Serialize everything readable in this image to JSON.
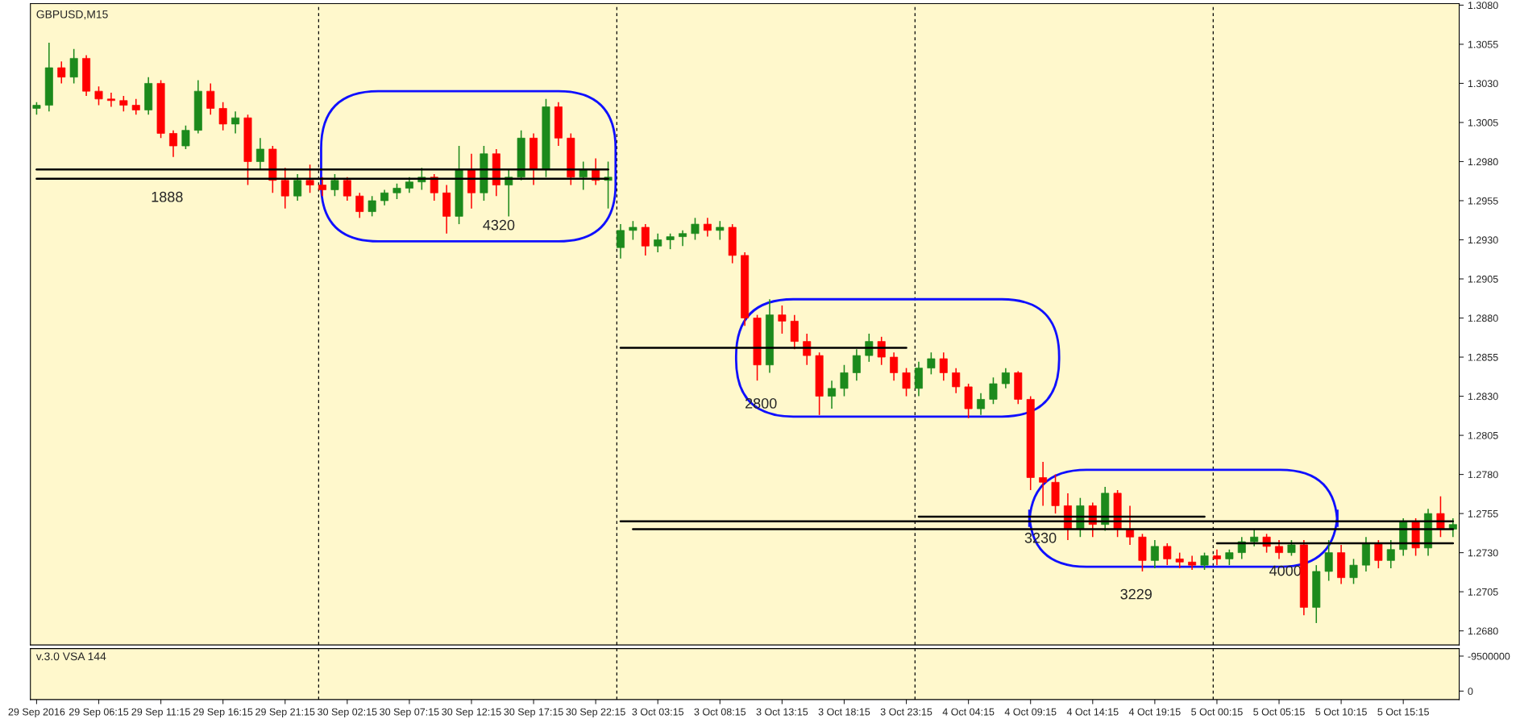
{
  "chart_data": [
    {
      "type": "candlestick",
      "title": "GBPUSD,M15",
      "categories": [
        null,
        null,
        null,
        null,
        null,
        null,
        null,
        null,
        null,
        null,
        null,
        null,
        null,
        null,
        null,
        null,
        null,
        null,
        null,
        null,
        null,
        null,
        null,
        null,
        null,
        null,
        null,
        null,
        null,
        null,
        null,
        null,
        null,
        null,
        null,
        null,
        null,
        null,
        null,
        null,
        null,
        null,
        null,
        null,
        null,
        null,
        null,
        null,
        null,
        null,
        null,
        null,
        null,
        null,
        null,
        null,
        null,
        null,
        null,
        null,
        null,
        null,
        null,
        null,
        null,
        null,
        null,
        null,
        null,
        null,
        null,
        null,
        null,
        null,
        null,
        null,
        null,
        null,
        null,
        null,
        null,
        null,
        null,
        null,
        null,
        null,
        null,
        null,
        null,
        null,
        null,
        null,
        null,
        null,
        null,
        null,
        null,
        null,
        null,
        null,
        null,
        null,
        null,
        null,
        null,
        null,
        null,
        null,
        null,
        null,
        null,
        null,
        null,
        null,
        null
      ],
      "ohlc": [
        [
          1.3014,
          1.3018,
          1.301,
          1.3016
        ],
        [
          1.3016,
          1.3056,
          1.3012,
          1.304
        ],
        [
          1.304,
          1.3044,
          1.303,
          1.3034
        ],
        [
          1.3034,
          1.3052,
          1.303,
          1.3046
        ],
        [
          1.3046,
          1.3048,
          1.3022,
          1.3025
        ],
        [
          1.3025,
          1.3028,
          1.3016,
          1.302
        ],
        [
          1.302,
          1.3024,
          1.3015,
          1.3019
        ],
        [
          1.3019,
          1.3022,
          1.3012,
          1.3016
        ],
        [
          1.3016,
          1.302,
          1.301,
          1.3013
        ],
        [
          1.3013,
          1.3034,
          1.301,
          1.303
        ],
        [
          1.303,
          1.3032,
          1.2995,
          1.2998
        ],
        [
          1.2998,
          1.3,
          1.2983,
          1.299
        ],
        [
          1.299,
          1.3003,
          1.2988,
          1.3
        ],
        [
          1.3,
          1.3032,
          1.2998,
          1.3025
        ],
        [
          1.3025,
          1.303,
          1.301,
          1.3014
        ],
        [
          1.3014,
          1.3018,
          1.3,
          1.3004
        ],
        [
          1.3004,
          1.3012,
          1.2998,
          1.3008
        ],
        [
          1.3008,
          1.301,
          1.2965,
          1.298
        ],
        [
          1.298,
          1.2995,
          1.2975,
          1.2988
        ],
        [
          1.2988,
          1.299,
          1.296,
          1.2968
        ],
        [
          1.2968,
          1.2976,
          1.295,
          1.2958
        ],
        [
          1.2958,
          1.2972,
          1.2955,
          1.2968
        ],
        [
          1.2968,
          1.2978,
          1.296,
          1.2965
        ],
        [
          1.2965,
          1.297,
          1.2958,
          1.2962
        ],
        [
          1.2962,
          1.2972,
          1.2958,
          1.2968
        ],
        [
          1.2968,
          1.297,
          1.2955,
          1.2958
        ],
        [
          1.2958,
          1.296,
          1.2944,
          1.2948
        ],
        [
          1.2948,
          1.2958,
          1.2945,
          1.2955
        ],
        [
          1.2955,
          1.2962,
          1.2952,
          1.296
        ],
        [
          1.296,
          1.2966,
          1.2956,
          1.2963
        ],
        [
          1.2963,
          1.297,
          1.296,
          1.2967
        ],
        [
          1.2967,
          1.2976,
          1.2962,
          1.297
        ],
        [
          1.297,
          1.2972,
          1.2955,
          1.296
        ],
        [
          1.296,
          1.2965,
          1.2934,
          1.2945
        ],
        [
          1.2945,
          1.299,
          1.294,
          1.2975
        ],
        [
          1.2975,
          1.2985,
          1.295,
          1.296
        ],
        [
          1.296,
          1.299,
          1.2955,
          1.2985
        ],
        [
          1.2985,
          1.2988,
          1.2958,
          1.2965
        ],
        [
          1.2965,
          1.2975,
          1.2945,
          1.297
        ],
        [
          1.297,
          1.3,
          1.2968,
          1.2995
        ],
        [
          1.2995,
          1.2998,
          1.2965,
          1.2975
        ],
        [
          1.2975,
          1.302,
          1.297,
          1.3015
        ],
        [
          1.3015,
          1.3018,
          1.299,
          1.2995
        ],
        [
          1.2995,
          1.2998,
          1.2965,
          1.297
        ],
        [
          1.297,
          1.298,
          1.2962,
          1.2975
        ],
        [
          1.2975,
          1.2982,
          1.2965,
          1.2968
        ],
        [
          1.2968,
          1.298,
          1.295,
          1.297
        ],
        [
          1.2925,
          1.294,
          1.2918,
          1.2936
        ],
        [
          1.2936,
          1.2942,
          1.293,
          1.2938
        ],
        [
          1.2938,
          1.294,
          1.292,
          1.2926
        ],
        [
          1.2926,
          1.2934,
          1.2922,
          1.293
        ],
        [
          1.293,
          1.2934,
          1.2924,
          1.2932
        ],
        [
          1.2932,
          1.2936,
          1.2926,
          1.2934
        ],
        [
          1.2934,
          1.2944,
          1.293,
          1.294
        ],
        [
          1.294,
          1.2944,
          1.2932,
          1.2936
        ],
        [
          1.2936,
          1.2942,
          1.293,
          1.2938
        ],
        [
          1.2938,
          1.294,
          1.2915,
          1.292
        ],
        [
          1.292,
          1.2922,
          1.2875,
          1.288
        ],
        [
          1.288,
          1.2882,
          1.284,
          1.285
        ],
        [
          1.285,
          1.2892,
          1.2845,
          1.2882
        ],
        [
          1.2882,
          1.2888,
          1.287,
          1.2878
        ],
        [
          1.2878,
          1.2882,
          1.286,
          1.2865
        ],
        [
          1.2865,
          1.287,
          1.285,
          1.2856
        ],
        [
          1.2856,
          1.2858,
          1.2818,
          1.283
        ],
        [
          1.283,
          1.284,
          1.2822,
          1.2835
        ],
        [
          1.2835,
          1.285,
          1.283,
          1.2845
        ],
        [
          1.2845,
          1.286,
          1.284,
          1.2856
        ],
        [
          1.2856,
          1.287,
          1.2852,
          1.2865
        ],
        [
          1.2865,
          1.2868,
          1.285,
          1.2855
        ],
        [
          1.2855,
          1.2858,
          1.284,
          1.2845
        ],
        [
          1.2845,
          1.2848,
          1.283,
          1.2835
        ],
        [
          1.2835,
          1.2852,
          1.283,
          1.2848
        ],
        [
          1.2848,
          1.2858,
          1.2844,
          1.2854
        ],
        [
          1.2854,
          1.2858,
          1.284,
          1.2845
        ],
        [
          1.2845,
          1.2848,
          1.2832,
          1.2836
        ],
        [
          1.2836,
          1.2838,
          1.2816,
          1.2822
        ],
        [
          1.2822,
          1.2832,
          1.2818,
          1.2828
        ],
        [
          1.2828,
          1.2842,
          1.2825,
          1.2838
        ],
        [
          1.2838,
          1.2848,
          1.2835,
          1.2845
        ],
        [
          1.2845,
          1.2846,
          1.2825,
          1.2828
        ],
        [
          1.2828,
          1.283,
          1.277,
          1.2778
        ],
        [
          1.2778,
          1.2788,
          1.276,
          1.2775
        ],
        [
          1.2775,
          1.278,
          1.2755,
          1.276
        ],
        [
          1.276,
          1.2768,
          1.2738,
          1.2745
        ],
        [
          1.2745,
          1.2765,
          1.274,
          1.276
        ],
        [
          1.276,
          1.2762,
          1.274,
          1.2748
        ],
        [
          1.2748,
          1.2772,
          1.2744,
          1.2768
        ],
        [
          1.2768,
          1.277,
          1.274,
          1.2745
        ],
        [
          1.2745,
          1.276,
          1.2735,
          1.274
        ],
        [
          1.274,
          1.2742,
          1.2718,
          1.2725
        ],
        [
          1.2725,
          1.2738,
          1.272,
          1.2734
        ],
        [
          1.2734,
          1.2736,
          1.2722,
          1.2726
        ],
        [
          1.2726,
          1.273,
          1.272,
          1.2724
        ],
        [
          1.2724,
          1.2728,
          1.2719,
          1.2722
        ],
        [
          1.2722,
          1.273,
          1.2719,
          1.2728
        ],
        [
          1.2728,
          1.2732,
          1.2722,
          1.2726
        ],
        [
          1.2726,
          1.2732,
          1.2722,
          1.273
        ],
        [
          1.273,
          1.274,
          1.2726,
          1.2737
        ],
        [
          1.2737,
          1.2745,
          1.2734,
          1.274
        ],
        [
          1.274,
          1.2742,
          1.273,
          1.2734
        ],
        [
          1.2734,
          1.2738,
          1.2726,
          1.273
        ],
        [
          1.273,
          1.2738,
          1.2728,
          1.2735
        ],
        [
          1.2735,
          1.2738,
          1.269,
          1.2695
        ],
        [
          1.2695,
          1.2722,
          1.2685,
          1.2718
        ],
        [
          1.2718,
          1.2738,
          1.2712,
          1.273
        ],
        [
          1.273,
          1.2735,
          1.271,
          1.2714
        ],
        [
          1.2714,
          1.2726,
          1.271,
          1.2722
        ],
        [
          1.2722,
          1.274,
          1.2718,
          1.2736
        ],
        [
          1.2736,
          1.2738,
          1.272,
          1.2725
        ],
        [
          1.2725,
          1.2738,
          1.272,
          1.2732
        ],
        [
          1.2732,
          1.2752,
          1.2728,
          1.275
        ],
        [
          1.275,
          1.2752,
          1.2728,
          1.2733
        ],
        [
          1.2733,
          1.2758,
          1.2728,
          1.2755
        ],
        [
          1.2755,
          1.2766,
          1.274,
          1.2745
        ],
        [
          1.2745,
          1.2752,
          1.274,
          1.2748
        ]
      ],
      "series": [
        {
          "type": "line",
          "color": "#000000",
          "values": [
            1.2975,
            1.2975,
            1.2975,
            1.2975,
            1.2975,
            1.2975,
            1.2975,
            1.2975,
            1.2975,
            1.2975,
            1.2975,
            1.2975,
            1.2975,
            1.2975,
            1.2975,
            1.2975,
            1.2975,
            1.2975,
            1.2975,
            1.2975,
            1.2975,
            1.2975,
            1.2975,
            1.2975,
            1.2975,
            1.2975,
            1.2975,
            1.2975,
            1.2975,
            1.2975,
            1.2975,
            1.2975,
            1.2975,
            1.2975,
            1.2975,
            1.2975,
            1.2975,
            1.2975,
            1.2975,
            1.2975,
            1.2975,
            1.2975,
            1.2975,
            1.2975,
            1.2975,
            1.2975,
            1.2975,
            null,
            null,
            null,
            null,
            null,
            null,
            null,
            null,
            null,
            null,
            null,
            null,
            null,
            null,
            null,
            null,
            null,
            null,
            null,
            null,
            null,
            null,
            null,
            null,
            null,
            null,
            null,
            null,
            null,
            null,
            null,
            null,
            null,
            null,
            null,
            null,
            null,
            null,
            null,
            null,
            null,
            null,
            null,
            null,
            null,
            null,
            null,
            null,
            null,
            null,
            null,
            null,
            null,
            null,
            null,
            null,
            null,
            null,
            null,
            null,
            null,
            null,
            null,
            null,
            null,
            null,
            null,
            null
          ]
        },
        {
          "type": "line",
          "color": "#000000",
          "values": [
            1.2969,
            1.2969,
            1.2969,
            1.2969,
            1.2969,
            1.2969,
            1.2969,
            1.2969,
            1.2969,
            1.2969,
            1.2969,
            1.2969,
            1.2969,
            1.2969,
            1.2969,
            1.2969,
            1.2969,
            1.2969,
            1.2969,
            1.2969,
            1.2969,
            1.2969,
            1.2969,
            1.2969,
            1.2969,
            1.2969,
            1.2969,
            1.2969,
            1.2969,
            1.2969,
            1.2969,
            1.2969,
            1.2969,
            1.2969,
            1.2969,
            1.2969,
            1.2969,
            1.2969,
            1.2969,
            1.2969,
            1.2969,
            1.2969,
            1.2969,
            1.2969,
            1.2969,
            1.2969,
            1.2969,
            null,
            null,
            null,
            null,
            null,
            null,
            null,
            null,
            null,
            null,
            null,
            null,
            null,
            null,
            null,
            null,
            null,
            null,
            null,
            null,
            null,
            null,
            null,
            null,
            null,
            null,
            null,
            null,
            null,
            null,
            null,
            null,
            null,
            null,
            null,
            null,
            null,
            null,
            null,
            null,
            null,
            null,
            null,
            null,
            null,
            null,
            null,
            null,
            null,
            null,
            null,
            null,
            null,
            null,
            null,
            null,
            null,
            null,
            null,
            null,
            null,
            null,
            null,
            null,
            null,
            null,
            null,
            null
          ]
        },
        {
          "type": "line",
          "color": "#000000",
          "values": [
            null,
            null,
            null,
            null,
            null,
            null,
            null,
            null,
            null,
            null,
            null,
            null,
            null,
            null,
            null,
            null,
            null,
            null,
            null,
            null,
            null,
            null,
            null,
            null,
            null,
            null,
            null,
            null,
            null,
            null,
            null,
            null,
            null,
            null,
            null,
            null,
            null,
            null,
            null,
            null,
            null,
            null,
            null,
            null,
            null,
            null,
            null,
            1.2861,
            1.2861,
            1.2861,
            1.2861,
            1.2861,
            1.2861,
            1.2861,
            1.2861,
            1.2861,
            1.2861,
            1.2861,
            1.2861,
            1.2861,
            1.2861,
            1.2861,
            1.2861,
            1.2861,
            1.2861,
            1.2861,
            1.2861,
            1.2861,
            1.2861,
            1.2861,
            1.2861,
            null,
            null,
            null,
            null,
            null,
            null,
            null,
            null,
            null,
            null,
            null,
            null,
            null,
            null,
            null,
            null,
            null,
            null,
            null,
            null,
            null,
            null,
            null,
            null,
            null,
            null,
            null,
            null,
            null,
            null,
            null,
            null,
            null,
            null,
            null,
            null,
            null,
            null,
            null,
            null,
            null,
            null,
            null,
            null
          ]
        },
        {
          "type": "line",
          "color": "#000000",
          "values": [
            null,
            null,
            null,
            null,
            null,
            null,
            null,
            null,
            null,
            null,
            null,
            null,
            null,
            null,
            null,
            null,
            null,
            null,
            null,
            null,
            null,
            null,
            null,
            null,
            null,
            null,
            null,
            null,
            null,
            null,
            null,
            null,
            null,
            null,
            null,
            null,
            null,
            null,
            null,
            null,
            null,
            null,
            null,
            null,
            null,
            null,
            null,
            null,
            null,
            null,
            null,
            null,
            null,
            null,
            null,
            null,
            null,
            null,
            null,
            null,
            null,
            null,
            null,
            null,
            null,
            null,
            null,
            null,
            null,
            null,
            null,
            1.2753,
            1.2753,
            1.2753,
            1.2753,
            1.2753,
            1.2753,
            1.2753,
            1.2753,
            1.2753,
            1.2753,
            1.2753,
            1.2753,
            1.2753,
            1.2753,
            1.2753,
            1.2753,
            1.2753,
            1.2753,
            1.2753,
            1.2753,
            1.2753,
            1.2753,
            1.2753,
            1.2753,
            null,
            null,
            null,
            null,
            null,
            null,
            null,
            null,
            null,
            null,
            null,
            null,
            null,
            null,
            null,
            null,
            null,
            null,
            null,
            null
          ]
        },
        {
          "type": "line",
          "color": "#000000",
          "values": [
            null,
            null,
            null,
            null,
            null,
            null,
            null,
            null,
            null,
            null,
            null,
            null,
            null,
            null,
            null,
            null,
            null,
            null,
            null,
            null,
            null,
            null,
            null,
            null,
            null,
            null,
            null,
            null,
            null,
            null,
            null,
            null,
            null,
            null,
            null,
            null,
            null,
            null,
            null,
            null,
            null,
            null,
            null,
            null,
            null,
            null,
            null,
            1.275,
            1.275,
            1.275,
            1.275,
            1.275,
            1.275,
            1.275,
            1.275,
            1.275,
            1.275,
            1.275,
            1.275,
            1.275,
            1.275,
            1.275,
            1.275,
            1.275,
            1.275,
            1.275,
            1.275,
            1.275,
            1.275,
            1.275,
            1.275,
            1.275,
            1.275,
            1.275,
            1.275,
            1.275,
            1.275,
            1.275,
            1.275,
            1.275,
            1.275,
            1.275,
            1.275,
            1.275,
            1.275,
            1.275,
            1.275,
            1.275,
            1.275,
            1.275,
            1.275,
            1.275,
            1.275,
            1.275,
            1.275,
            1.275,
            1.275,
            1.275,
            1.275,
            1.275,
            1.275,
            1.275,
            1.275,
            1.275,
            1.275,
            1.275,
            1.275,
            1.275,
            1.275,
            1.275,
            1.275,
            1.275,
            1.275,
            1.275,
            1.275
          ]
        },
        {
          "type": "line",
          "color": "#000000",
          "values": [
            null,
            null,
            null,
            null,
            null,
            null,
            null,
            null,
            null,
            null,
            null,
            null,
            null,
            null,
            null,
            null,
            null,
            null,
            null,
            null,
            null,
            null,
            null,
            null,
            null,
            null,
            null,
            null,
            null,
            null,
            null,
            null,
            null,
            null,
            null,
            null,
            null,
            null,
            null,
            null,
            null,
            null,
            null,
            null,
            null,
            null,
            null,
            null,
            1.2745,
            1.2745,
            1.2745,
            1.2745,
            1.2745,
            1.2745,
            1.2745,
            1.2745,
            1.2745,
            1.2745,
            1.2745,
            1.2745,
            1.2745,
            1.2745,
            1.2745,
            1.2745,
            1.2745,
            1.2745,
            1.2745,
            1.2745,
            1.2745,
            1.2745,
            1.2745,
            1.2745,
            1.2745,
            1.2745,
            1.2745,
            1.2745,
            1.2745,
            1.2745,
            1.2745,
            1.2745,
            1.2745,
            1.2745,
            1.2745,
            1.2745,
            1.2745,
            1.2745,
            1.2745,
            1.2745,
            1.2745,
            1.2745,
            1.2745,
            1.2745,
            1.2745,
            1.2745,
            1.2745,
            1.2745,
            1.2745,
            1.2745,
            1.2745,
            1.2745,
            1.2745,
            1.2745,
            1.2745,
            1.2745,
            1.2745,
            1.2745,
            1.2745,
            1.2745,
            1.2745,
            1.2745,
            1.2745,
            1.2745,
            1.2745,
            1.2745,
            1.2745
          ]
        },
        {
          "type": "line",
          "color": "#000000",
          "values": [
            null,
            null,
            null,
            null,
            null,
            null,
            null,
            null,
            null,
            null,
            null,
            null,
            null,
            null,
            null,
            null,
            null,
            null,
            null,
            null,
            null,
            null,
            null,
            null,
            null,
            null,
            null,
            null,
            null,
            null,
            null,
            null,
            null,
            null,
            null,
            null,
            null,
            null,
            null,
            null,
            null,
            null,
            null,
            null,
            null,
            null,
            null,
            null,
            null,
            null,
            null,
            null,
            null,
            null,
            null,
            null,
            null,
            null,
            null,
            null,
            null,
            null,
            null,
            null,
            null,
            null,
            null,
            null,
            null,
            null,
            null,
            null,
            null,
            null,
            null,
            null,
            null,
            null,
            null,
            null,
            null,
            null,
            null,
            null,
            null,
            null,
            null,
            null,
            null,
            null,
            null,
            null,
            null,
            null,
            null,
            1.2736,
            1.2736,
            1.2736,
            1.2736,
            1.2736,
            1.2736,
            1.2736,
            1.2736,
            1.2736,
            1.2736,
            1.2736,
            1.2736,
            1.2736,
            1.2736,
            1.2736,
            1.2736,
            1.2736,
            1.2736,
            1.2736,
            1.2736
          ]
        }
      ],
      "ylim": [
        1.2671,
        1.3081
      ],
      "yticks": [
        {
          "value": 1.268,
          "label": "1.2680"
        },
        {
          "value": 1.2705,
          "label": "1.2705"
        },
        {
          "value": 1.273,
          "label": "1.2730"
        },
        {
          "value": 1.2755,
          "label": "1.2755"
        },
        {
          "value": 1.278,
          "label": "1.2780"
        },
        {
          "value": 1.2805,
          "label": "1.2805"
        },
        {
          "value": 1.283,
          "label": "1.2830"
        },
        {
          "value": 1.2855,
          "label": "1.2855"
        },
        {
          "value": 1.288,
          "label": "1.2880"
        },
        {
          "value": 1.2905,
          "label": "1.2905"
        },
        {
          "value": 1.293,
          "label": "1.2930"
        },
        {
          "value": 1.2955,
          "label": "1.2955"
        },
        {
          "value": 1.298,
          "label": "1.2980"
        },
        {
          "value": 1.3005,
          "label": "1.3005"
        },
        {
          "value": 1.303,
          "label": "1.3030"
        },
        {
          "value": 1.3055,
          "label": "1.3055"
        },
        {
          "value": 1.308,
          "label": "1.3080"
        }
      ],
      "annotations": [
        "1888",
        "4320",
        "2800",
        "3230",
        "3229",
        "4000"
      ],
      "tick_labels": "y"
    },
    {
      "type": "bar",
      "title": "v.3.0 VSA 144",
      "values": [
        null,
        null,
        null,
        null,
        null,
        null,
        null,
        null,
        null,
        null,
        null,
        null,
        null,
        null,
        null,
        null,
        null,
        null,
        null,
        null,
        null,
        null,
        null,
        null,
        null,
        null,
        null,
        null,
        null,
        null,
        null,
        null,
        null,
        null,
        null,
        null,
        null,
        null,
        null,
        null,
        null,
        null,
        null,
        null,
        null,
        null,
        null,
        null,
        null,
        null,
        null,
        null,
        null,
        null,
        null,
        null,
        null,
        null,
        null,
        null,
        null,
        null,
        null,
        null,
        null,
        null,
        null,
        null,
        null,
        null,
        null,
        null,
        null,
        null,
        null,
        null,
        null,
        null,
        null,
        null,
        null,
        null,
        null,
        null,
        null,
        null,
        null,
        null,
        null,
        null,
        null,
        null,
        null,
        null,
        null,
        null,
        null,
        null,
        null,
        null,
        null,
        null,
        null,
        null,
        null,
        null,
        null,
        null,
        null,
        null,
        null,
        null,
        null,
        null,
        null
      ],
      "categories": [
        "29 Sep 2016",
        null,
        null,
        null,
        null,
        "29 Sep 06:15",
        null,
        null,
        null,
        null,
        "29 Sep 11:15",
        null,
        null,
        null,
        null,
        "29 Sep 16:15",
        null,
        null,
        null,
        null,
        "29 Sep 21:15",
        null,
        null,
        null,
        null,
        "30 Sep 02:15",
        null,
        null,
        null,
        null,
        "30 Sep 07:15",
        null,
        null,
        null,
        null,
        "30 Sep 12:15",
        null,
        null,
        null,
        null,
        "30 Sep 17:15",
        null,
        null,
        null,
        null,
        "30 Sep 22:15",
        null,
        null,
        null,
        null,
        "3 Oct 03:15",
        null,
        null,
        null,
        null,
        "3 Oct 08:15",
        null,
        null,
        null,
        null,
        "3 Oct 13:15",
        null,
        null,
        null,
        null,
        "3 Oct 18:15",
        null,
        null,
        null,
        null,
        "3 Oct 23:15",
        null,
        null,
        null,
        null,
        "4 Oct 04:15",
        null,
        null,
        null,
        null,
        "4 Oct 09:15",
        null,
        null,
        null,
        null,
        "4 Oct 14:15",
        null,
        null,
        null,
        null,
        "4 Oct 19:15",
        null,
        null,
        null,
        null,
        "5 Oct 00:15",
        null,
        null,
        null,
        null,
        "5 Oct 05:15",
        null,
        null,
        null,
        null,
        "5 Oct 10:15",
        null,
        null,
        null,
        null,
        "5 Oct 15:15",
        null,
        null,
        null,
        null
      ],
      "ylim": [
        2300000,
        -11550000
      ],
      "yticks": [
        -9500000,
        0
      ]
    }
  ]
}
